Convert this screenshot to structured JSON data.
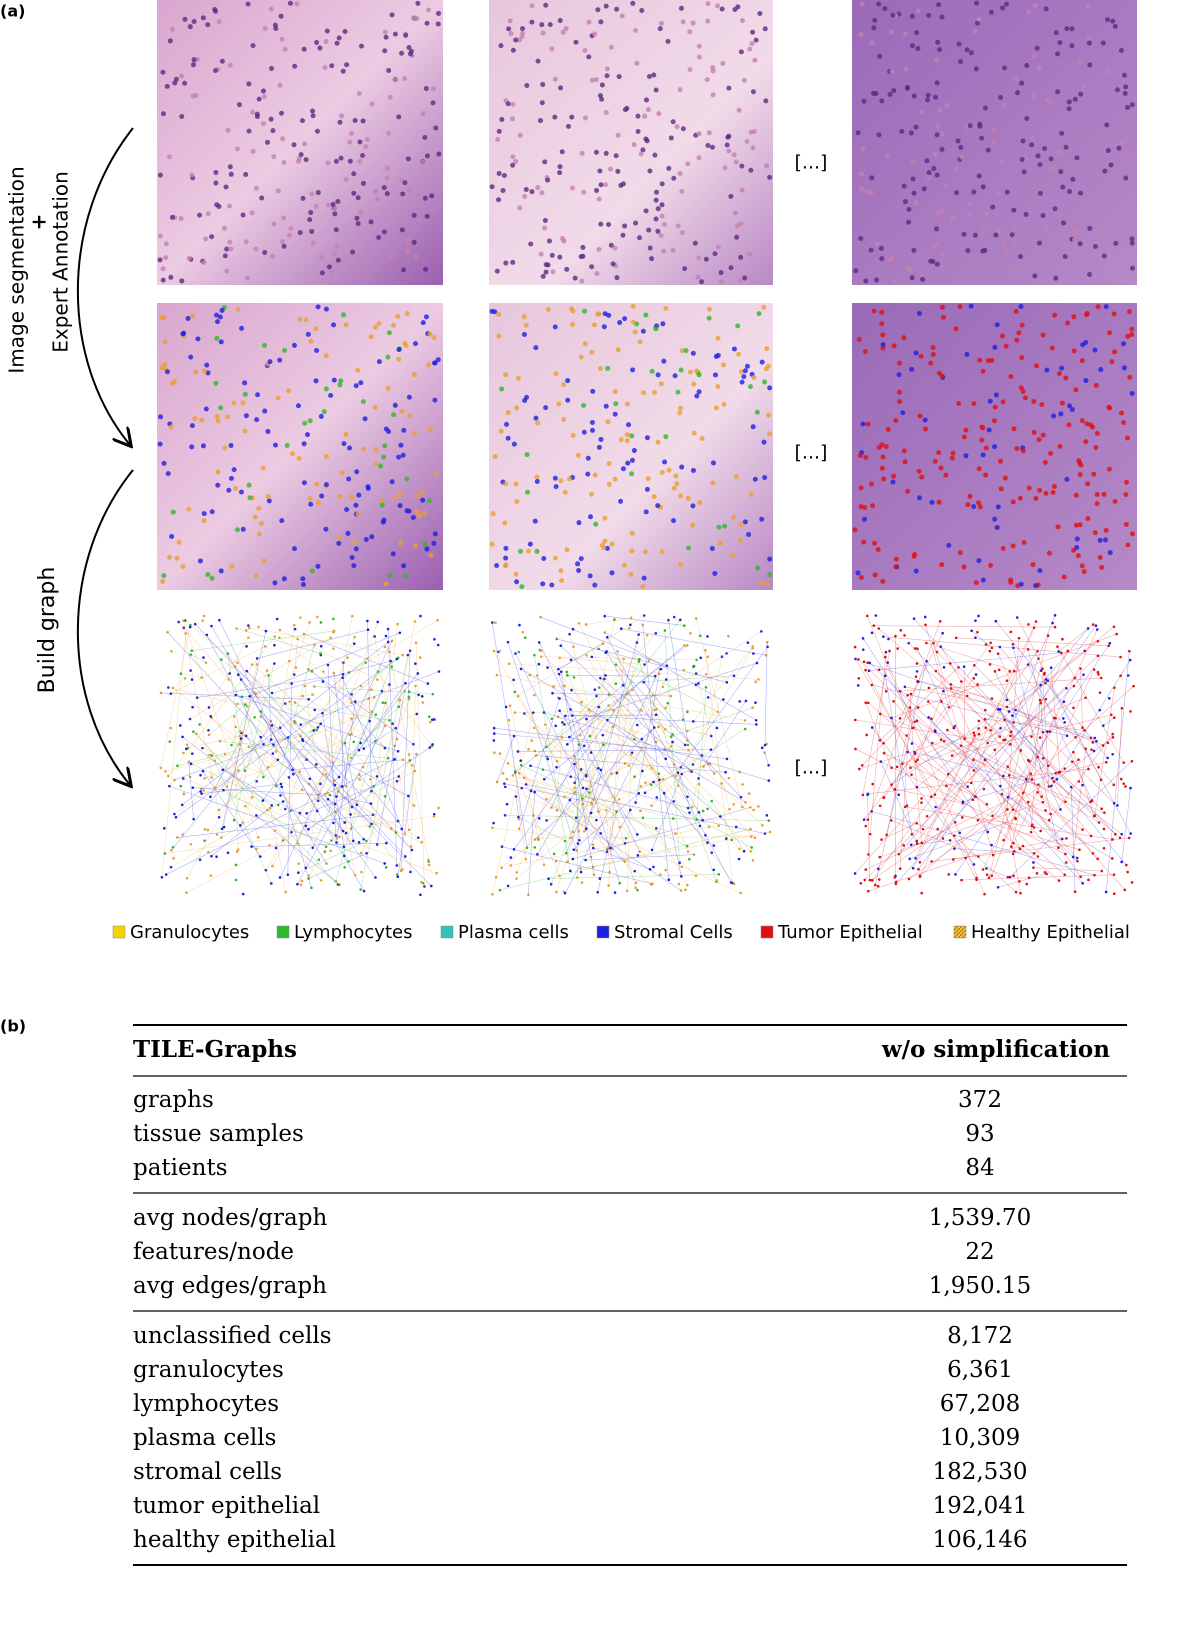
{
  "panel_a": {
    "label": "(a)",
    "side_labels": {
      "segmentation": "Image segmentation",
      "plus": "+",
      "annotation": "Expert Annotation",
      "graph": "Build graph"
    },
    "ellipsis": [
      "[...]",
      "[...]",
      "[...]"
    ],
    "legend": [
      {
        "name": "Granulocytes",
        "color": "#f2d400"
      },
      {
        "name": "Lymphocytes",
        "color": "#2db82d"
      },
      {
        "name": "Plasma cells",
        "color": "#2ec4c4"
      },
      {
        "name": "Stromal Cells",
        "color": "#1f1fe0"
      },
      {
        "name": "Tumor Epithelial",
        "color": "#e01010"
      },
      {
        "name": "Healthy Epithelial",
        "color": "#e8a030"
      }
    ]
  },
  "panel_b": {
    "label": "(b)",
    "table": {
      "header": [
        "TILE-Graphs",
        "w/o simplification"
      ],
      "groups": [
        [
          [
            "graphs",
            "372"
          ],
          [
            "tissue samples",
            "93"
          ],
          [
            "patients",
            "84"
          ]
        ],
        [
          [
            "avg nodes/graph",
            "1,539.70"
          ],
          [
            "features/node",
            "22"
          ],
          [
            "avg edges/graph",
            "1,950.15"
          ]
        ],
        [
          [
            "unclassified cells",
            "8,172"
          ],
          [
            "granulocytes",
            "6,361"
          ],
          [
            "lymphocytes",
            "67,208"
          ],
          [
            "plasma cells",
            "10,309"
          ],
          [
            "stromal cells",
            "182,530"
          ],
          [
            "tumor epithelial",
            "192,041"
          ],
          [
            "healthy epithelial",
            "106,146"
          ]
        ]
      ]
    }
  }
}
